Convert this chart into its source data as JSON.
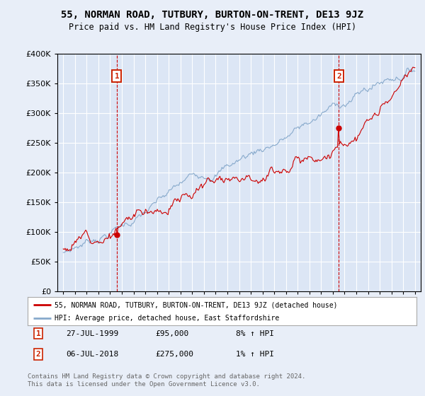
{
  "title": "55, NORMAN ROAD, TUTBURY, BURTON-ON-TRENT, DE13 9JZ",
  "subtitle": "Price paid vs. HM Land Registry's House Price Index (HPI)",
  "bg_color": "#e8eef8",
  "plot_bg_color": "#dce6f5",
  "grid_color": "#ffffff",
  "ylim": [
    0,
    400000
  ],
  "yticks": [
    0,
    50000,
    100000,
    150000,
    200000,
    250000,
    300000,
    350000,
    400000
  ],
  "xlim_start": 1994.5,
  "xlim_end": 2025.5,
  "sale1_x": 1999.57,
  "sale1_y": 95000,
  "sale2_x": 2018.51,
  "sale2_y": 275000,
  "legend1_label": "55, NORMAN ROAD, TUTBURY, BURTON-ON-TRENT, DE13 9JZ (detached house)",
  "legend2_label": "HPI: Average price, detached house, East Staffordshire",
  "note1_date": "27-JUL-1999",
  "note1_price": "£95,000",
  "note1_hpi": "8% ↑ HPI",
  "note2_date": "06-JUL-2018",
  "note2_price": "£275,000",
  "note2_hpi": "1% ↑ HPI",
  "footer": "Contains HM Land Registry data © Crown copyright and database right 2024.\nThis data is licensed under the Open Government Licence v3.0.",
  "line_red": "#cc0000",
  "line_blue": "#88aacc",
  "box_color": "#cc2200"
}
